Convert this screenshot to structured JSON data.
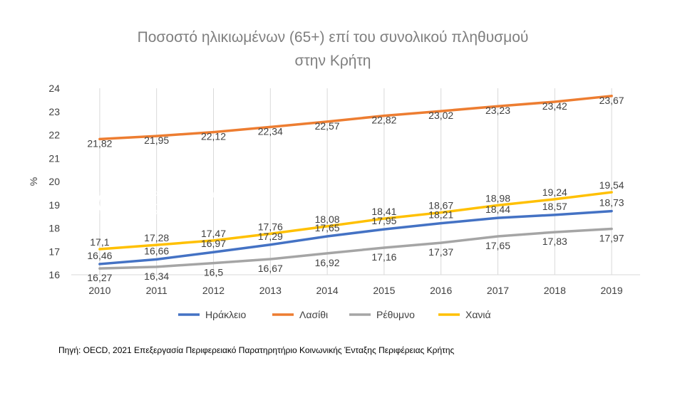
{
  "chart_data": {
    "type": "line",
    "title_line1": "Ποσοστό ηλικιωμένων (65+) επί του συνολικού πληθυσμού",
    "title_line2": "στην Κρήτη",
    "xlabel": "",
    "ylabel": "%",
    "categories": [
      "2010",
      "2011",
      "2012",
      "2013",
      "2014",
      "2015",
      "2016",
      "2017",
      "2018",
      "2019"
    ],
    "ylim": [
      16,
      24
    ],
    "yticks": [
      16,
      17,
      18,
      19,
      20,
      21,
      22,
      23,
      24
    ],
    "grid": "vertical",
    "legend_position": "bottom",
    "series": [
      {
        "name": "Ηράκλειο",
        "color": "#4472c4",
        "values": [
          16.46,
          16.66,
          16.97,
          17.29,
          17.65,
          17.95,
          18.21,
          18.44,
          18.57,
          18.73
        ],
        "labels": [
          "16,46",
          "16,66",
          "16,97",
          "17,29",
          "17,65",
          "17,95",
          "18,21",
          "18,44",
          "18,57",
          "18,73"
        ]
      },
      {
        "name": "Λασίθι",
        "color": "#ed7d31",
        "values": [
          21.82,
          21.95,
          22.12,
          22.34,
          22.57,
          22.82,
          23.02,
          23.23,
          23.42,
          23.67
        ],
        "labels": [
          "21,82",
          "21,95",
          "22,12",
          "22,34",
          "22,57",
          "22,82",
          "23,02",
          "23,23",
          "23,42",
          "23,67"
        ]
      },
      {
        "name": "Ρέθυμνο",
        "color": "#a5a5a5",
        "values": [
          16.27,
          16.34,
          16.5,
          16.67,
          16.92,
          17.16,
          17.37,
          17.65,
          17.83,
          17.97
        ],
        "labels": [
          "16,27",
          "16,34",
          "16,5",
          "16,67",
          "16,92",
          "17,16",
          "17,37",
          "17,65",
          "17,83",
          "17,97"
        ]
      },
      {
        "name": "Χανιά",
        "color": "#ffc000",
        "values": [
          17.1,
          17.28,
          17.47,
          17.76,
          18.08,
          18.41,
          18.67,
          18.98,
          19.24,
          19.54
        ],
        "labels": [
          "17,1",
          "17,28",
          "17,47",
          "17,76",
          "18,08",
          "18,41",
          "18,67",
          "18,98",
          "19,24",
          "19,54"
        ]
      }
    ]
  },
  "watermark": {
    "line1": "Περιφερειακό Παρατηρητήριο",
    "line2": "Κοινωνικής Ένταξης",
    "line3": "περιφέρειας κρήτης"
  },
  "source": "Πηγή: OECD, 2021 Επεξεργασία Περιφερειακό Παρατηρητήριο Κοινωνικής Ένταξης Περιφέρειας Κρήτης"
}
